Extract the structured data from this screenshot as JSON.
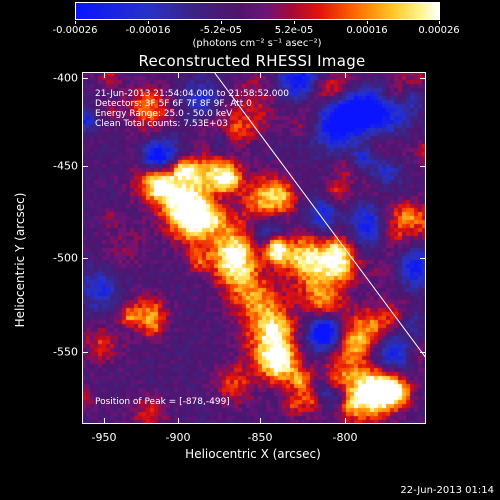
{
  "colorbar": {
    "tick_labels": [
      "-0.00026",
      "-0.00016",
      "-5.2e-05",
      "5.2e-05",
      "0.00016",
      "0.00026"
    ],
    "units_label": "(photons cm⁻² s⁻¹ asec⁻²)",
    "colormap": "red-temperature with blue negatives"
  },
  "title": "Reconstructed RHESSI Image",
  "info_lines": [
    "21-Jun-2013 21:54:04.000 to 21:58:52.000",
    "Detectors: 3F 5F 6F 7F 8F 9F, Att 0",
    "Energy Range: 25.0 - 50.0 keV",
    "Clean     Total counts: 7.53E+03"
  ],
  "peak_text": "Position of Peak = [-878,-499]",
  "x_axis": {
    "title": "Heliocentric X (arcsec)",
    "tick_labels": [
      "-950",
      "-900",
      "-850",
      "-800"
    ],
    "range": [
      -962,
      -766
    ]
  },
  "y_axis": {
    "title": "Heliocentric Y (arcsec)",
    "tick_labels": [
      "-400",
      "-450",
      "-500",
      "-550"
    ],
    "range": [
      -593,
      -397
    ]
  },
  "timestamp": "22-Jun-2013 01:14",
  "colors": {
    "background": "#000000",
    "foreground": "#ffffff"
  }
}
